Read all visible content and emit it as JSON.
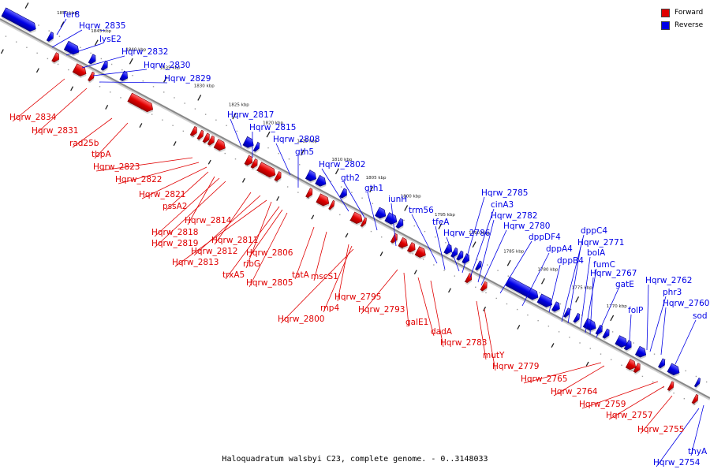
{
  "legend": {
    "forward_label": "Forward",
    "reverse_label": "Reverse",
    "forward_color": "#e00000",
    "reverse_color": "#0000e6"
  },
  "caption": "Haloquadratum walsbyi C23, complete genome. - 0..3148033",
  "backbone_color": "#888888",
  "ticks": [
    {
      "label": "1855 kbp"
    },
    {
      "label": "1850 kbp"
    },
    {
      "label": "1845 kbp"
    },
    {
      "label": "1840 kbp"
    },
    {
      "label": "1835 kbp"
    },
    {
      "label": "1830 kbp"
    },
    {
      "label": "1825 kbp"
    },
    {
      "label": "1820 kbp"
    },
    {
      "label": "1815 kbp"
    },
    {
      "label": "1810 kbp"
    },
    {
      "label": "1805 kbp"
    },
    {
      "label": "1800 kbp"
    },
    {
      "label": "1795 kbp"
    },
    {
      "label": "1790 kbp"
    },
    {
      "label": "1785 kbp"
    },
    {
      "label": "1780 kbp"
    },
    {
      "label": "1775 kbp"
    },
    {
      "label": "1770 kbp"
    }
  ],
  "reverse_labels": [
    "fer8",
    "Hqrw_2835",
    "lysE2",
    "Hqrw_2832",
    "Hqrw_2830",
    "Hqrw_2829",
    "Hqrw_2817",
    "Hqrw_2815",
    "Hqrw_2808",
    "gth5",
    "Hqrw_2802",
    "gth2",
    "gth1",
    "iunH",
    "trm56",
    "tfeA",
    "Hqrw_2786",
    "Hqrw_2785",
    "cinA3",
    "Hqrw_2782",
    "Hqrw_2780",
    "dppDF4",
    "dppA4",
    "dppB4",
    "dppC4",
    "Hqrw_2771",
    "bolA",
    "fumC",
    "Hqrw_2767",
    "gatE",
    "folP",
    "Hqrw_2762",
    "phr3",
    "Hqrw_2760",
    "sod",
    "thyA",
    "Hqrw_2754"
  ],
  "forward_labels": [
    "Hqrw_2834",
    "Hqrw_2831",
    "rad25b",
    "tbpA",
    "Hqrw_2823",
    "Hqrw_2822",
    "Hqrw_2821",
    "pssA2",
    "Hqrw_2814",
    "Hqrw_2818",
    "Hqrw_2819",
    "Hqrw_2811",
    "Hqrw_2812",
    "Hqrw_2813",
    "ribG",
    "trxA5",
    "Hqrw_2806",
    "Hqrw_2805",
    "tatA",
    "mscS1",
    "Hqrw_2795",
    "rnp4",
    "Hqrw_2800",
    "Hqrw_2793",
    "galE1",
    "dadA",
    "Hqrw_2783",
    "mutY",
    "Hqrw_2779",
    "Hqrw_2765",
    "Hqrw_2764",
    "Hqrw_2759",
    "Hqrw_2757",
    "Hqrw_2755"
  ]
}
